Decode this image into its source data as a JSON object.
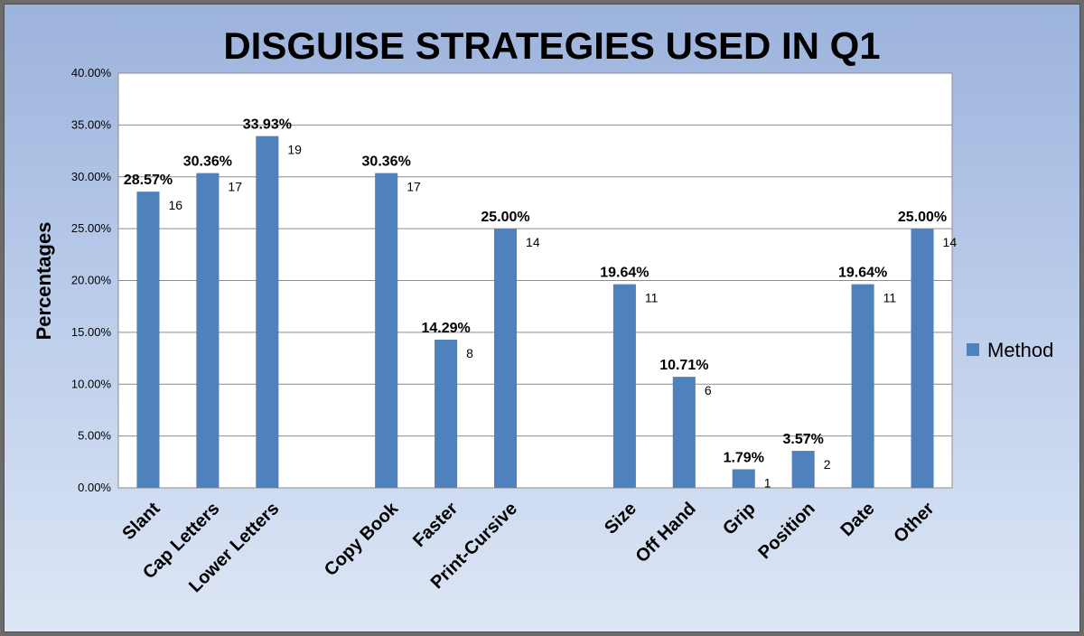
{
  "chart_data": {
    "type": "bar",
    "title": "DISGUISE STRATEGIES USED IN Q1",
    "ylabel": "Percentages",
    "xlabel": "",
    "ylim": [
      0,
      40
    ],
    "yticks": [
      "0.00%",
      "5.00%",
      "10.00%",
      "15.00%",
      "20.00%",
      "25.00%",
      "30.00%",
      "35.00%",
      "40.00%"
    ],
    "grid": true,
    "legend_position": "right",
    "bar_color": "#4f81bd",
    "categories": [
      "Slant",
      "Cap Letters",
      "Lower Letters",
      "",
      "Copy Book",
      "Faster",
      "Print-Cursive",
      "",
      "Size",
      "Off Hand",
      "Grip",
      "Position",
      "Date",
      "Other"
    ],
    "series": [
      {
        "name": "Method",
        "values": [
          28.57,
          30.36,
          33.93,
          null,
          30.36,
          14.29,
          25.0,
          null,
          19.64,
          10.71,
          1.79,
          3.57,
          19.64,
          25.0
        ],
        "percent_labels": [
          "28.57%",
          "30.36%",
          "33.93%",
          "",
          "30.36%",
          "14.29%",
          "25.00%",
          "",
          "19.64%",
          "10.71%",
          "1.79%",
          "3.57%",
          "19.64%",
          "25.00%"
        ],
        "counts": [
          "16",
          "17",
          "19",
          "",
          "17",
          "8",
          "14",
          "",
          "11",
          "6",
          "1",
          "2",
          "11",
          "14"
        ]
      }
    ]
  }
}
